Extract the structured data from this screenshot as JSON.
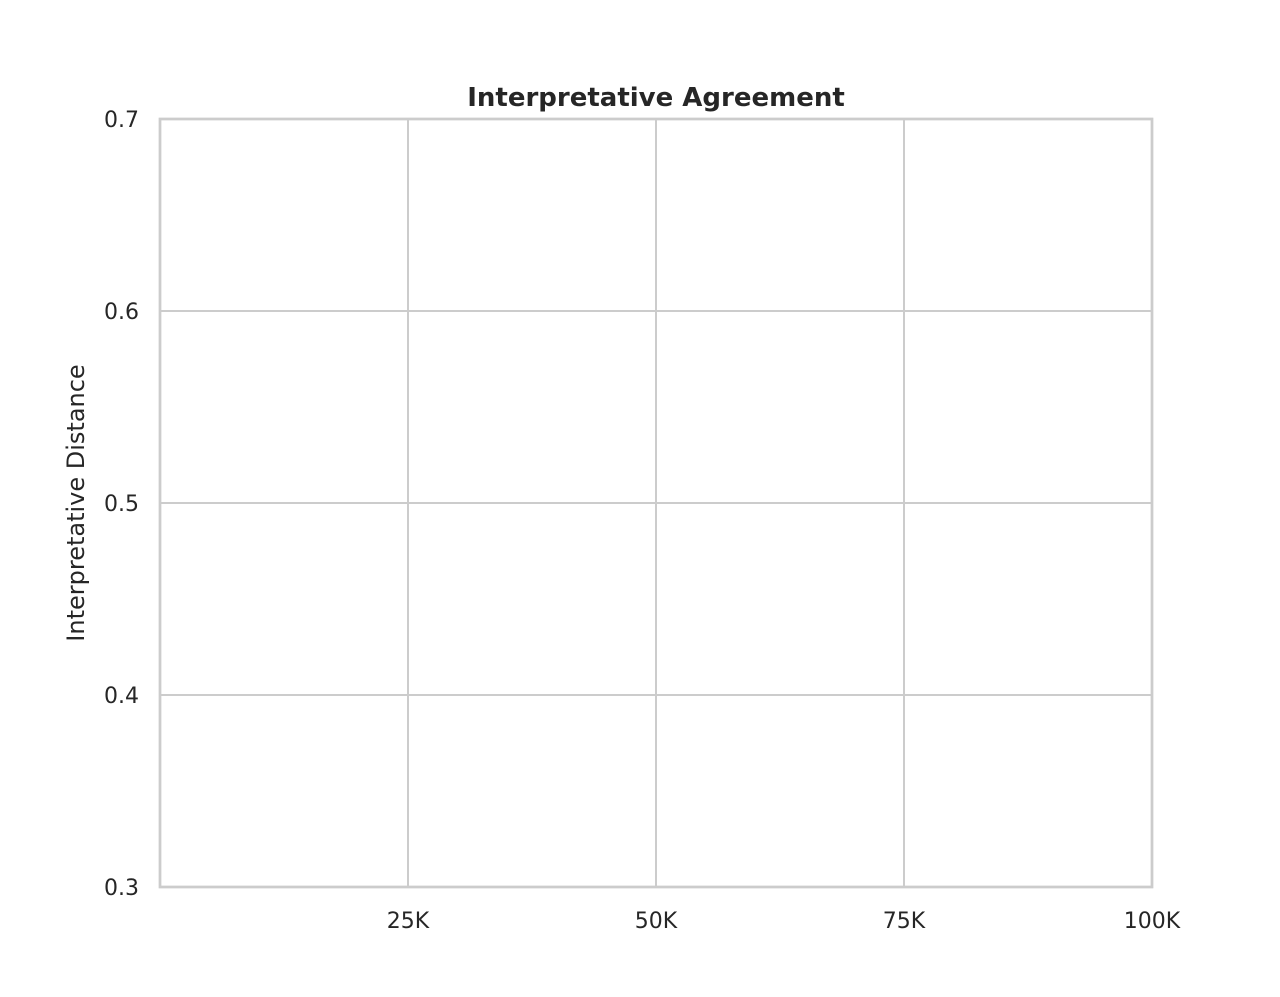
{
  "chart_data": {
    "type": "line",
    "title": "Interpretative Agreement",
    "xlabel": "",
    "ylabel": "Interpretative Distance",
    "xlim": [
      0,
      100000
    ],
    "ylim": [
      0.3,
      0.7
    ],
    "x_ticks": [
      25000,
      50000,
      75000,
      100000
    ],
    "x_tick_labels": [
      "25K",
      "50K",
      "75K",
      "100K"
    ],
    "y_ticks": [
      0.3,
      0.4,
      0.5,
      0.6,
      0.7
    ],
    "y_tick_labels": [
      "0.3",
      "0.4",
      "0.5",
      "0.6",
      "0.7"
    ],
    "grid": true,
    "series": []
  }
}
